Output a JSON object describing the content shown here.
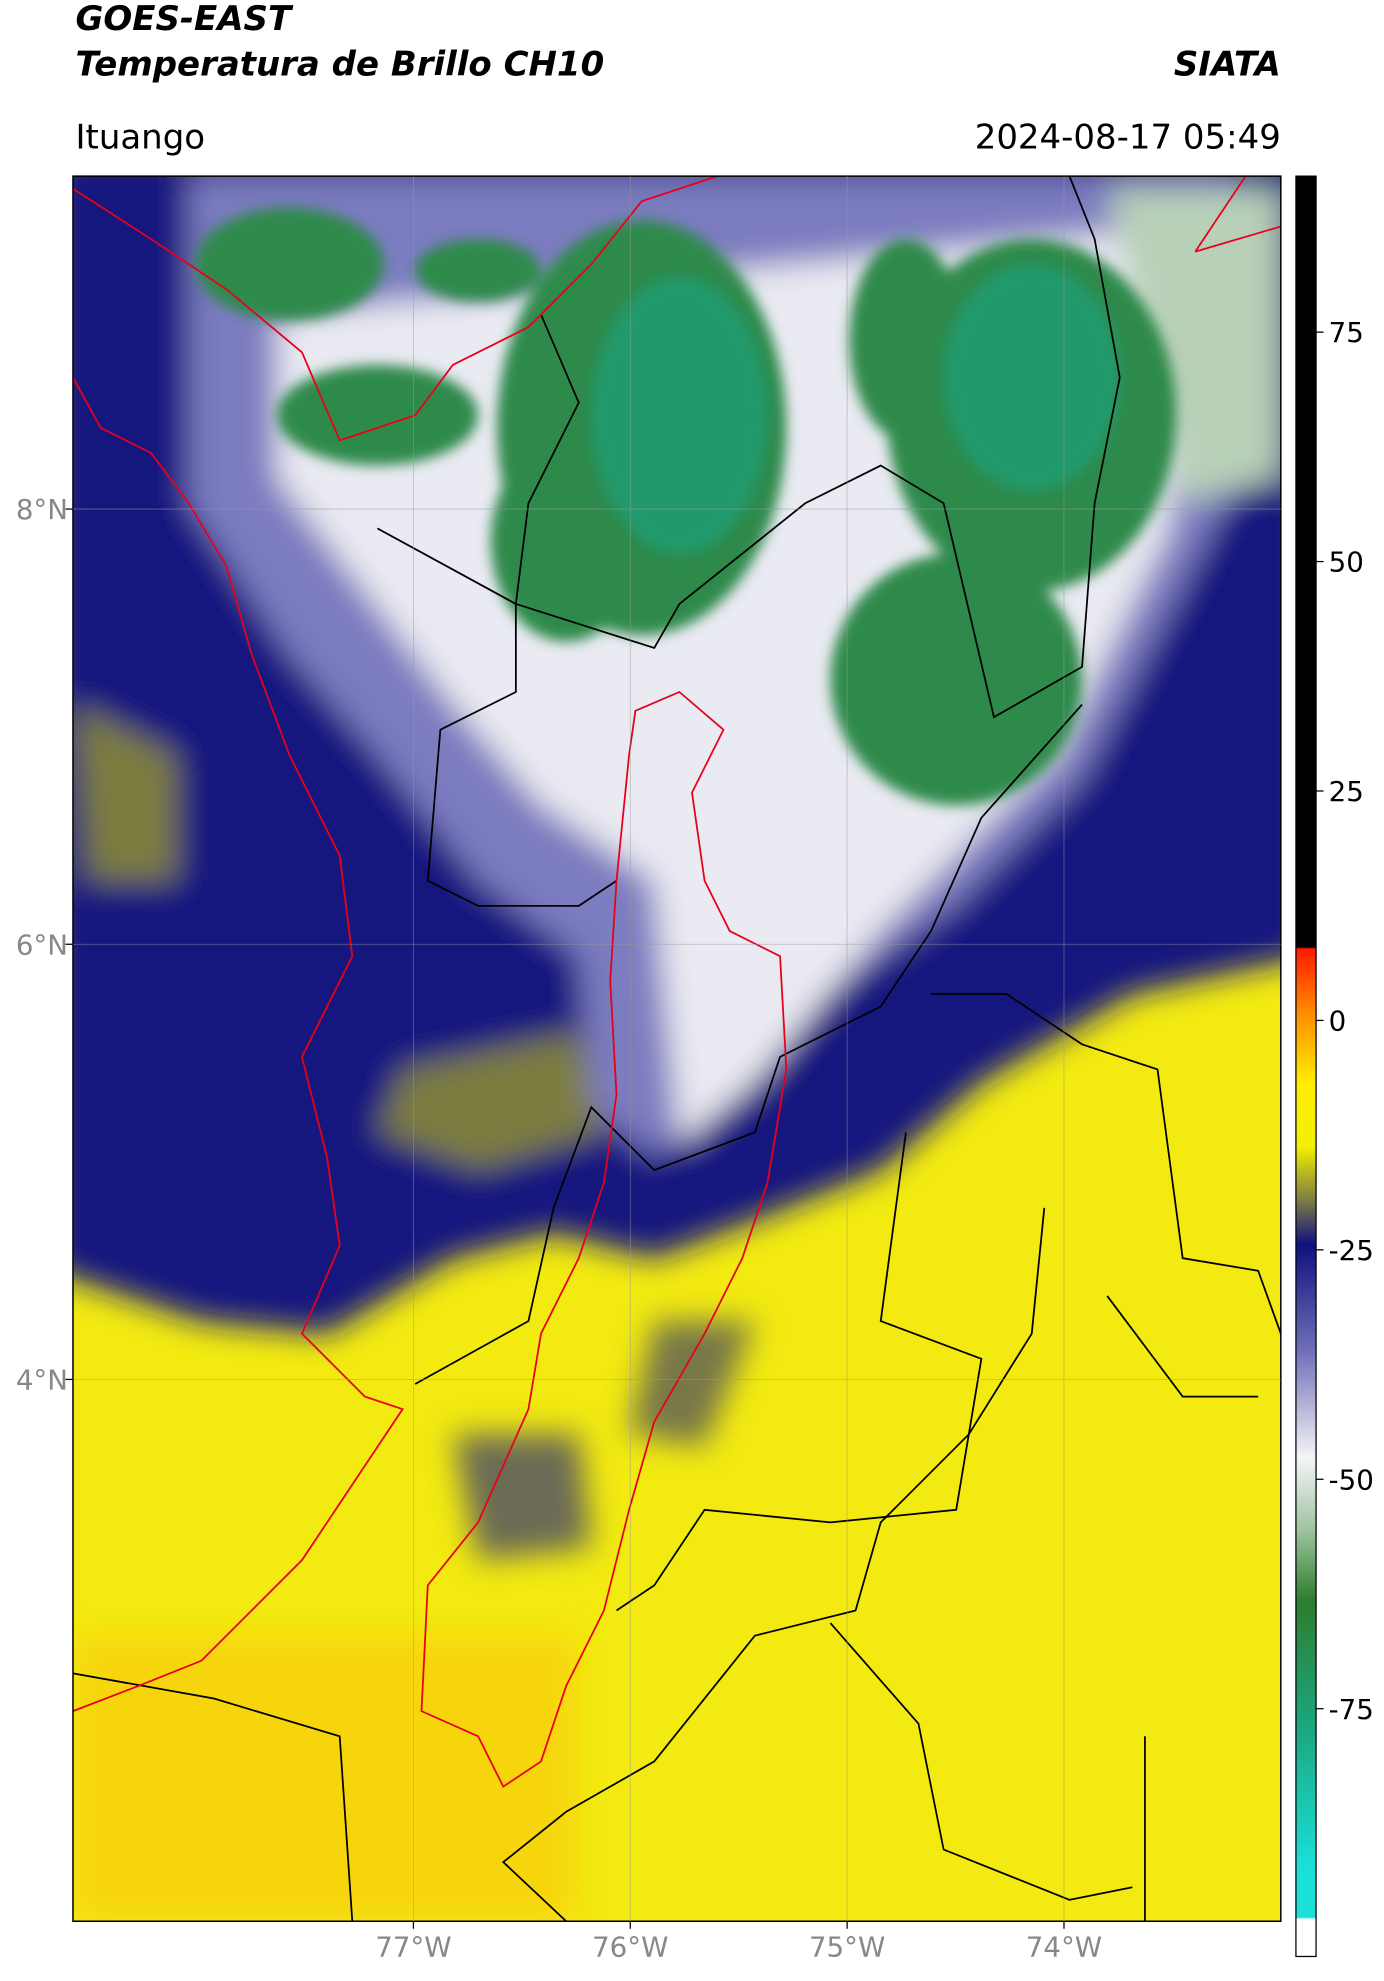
{
  "header": {
    "title": "GOES-EAST",
    "subtitle": "Temperatura de Brillo CH10",
    "source": "SIATA",
    "location": "Ituango",
    "timestamp": "2024-08-17 05:49"
  },
  "map": {
    "xlim": [
      -78.57,
      -73.0
    ],
    "ylim": [
      1.51,
      9.53
    ],
    "xticks": [
      {
        "value": -77,
        "label": "77°W"
      },
      {
        "value": -76,
        "label": "76°W"
      },
      {
        "value": -75,
        "label": "75°W"
      },
      {
        "value": -74,
        "label": "74°W"
      }
    ],
    "yticks": [
      {
        "value": 8,
        "label": "8°N"
      },
      {
        "value": 6,
        "label": "6°N"
      },
      {
        "value": 4,
        "label": "4°N"
      }
    ]
  },
  "colorbar": {
    "lim": [
      -102,
      92
    ],
    "ticks": [
      75,
      50,
      25,
      0,
      -25,
      -50,
      -75
    ]
  }
}
